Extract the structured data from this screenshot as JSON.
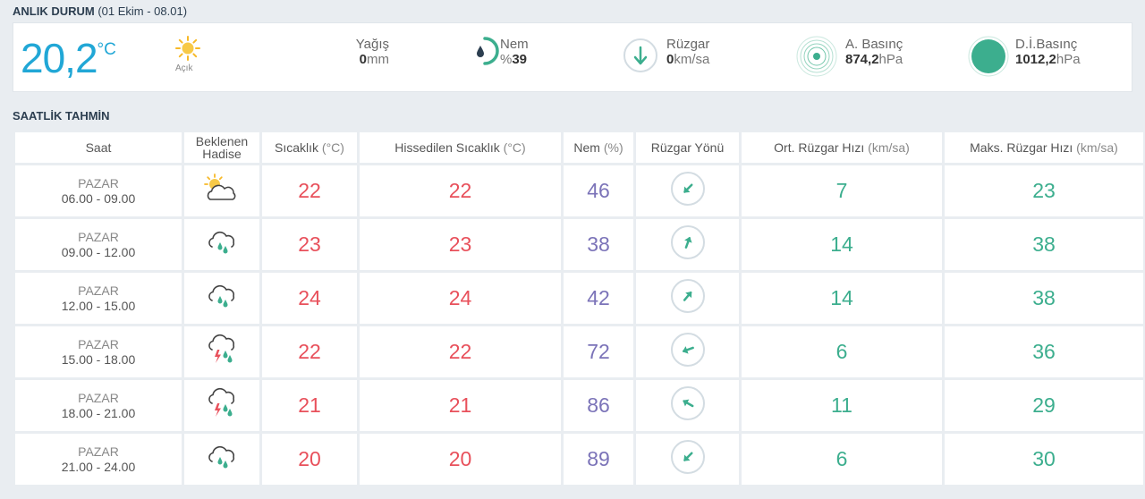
{
  "current": {
    "title": "ANLIK DURUM",
    "subtitle": "(01 Ekim - 08.01)",
    "temperature": "20,2",
    "temp_unit": "°C",
    "sky_label": "Açık",
    "rain_label": "Yağış",
    "rain_value": "0",
    "rain_unit": "mm",
    "humidity_label": "Nem",
    "humidity_prefix": "%",
    "humidity_value": "39",
    "wind_label": "Rüzgar",
    "wind_value": "0",
    "wind_unit": "km/sa",
    "pressure_label": "A. Basınç",
    "pressure_value": "874,2",
    "pressure_unit": "hPa",
    "sea_pressure_label": "D.İ.Basınç",
    "sea_pressure_value": "1012,2",
    "sea_pressure_unit": "hPa"
  },
  "forecast": {
    "title": "SAATLİK TAHMİN",
    "headers": {
      "time": "Saat",
      "event_1": "Beklenen",
      "event_2": "Hadise",
      "temp": "Sıcaklık",
      "temp_unit": "(°C)",
      "feels": "Hissedilen Sıcaklık",
      "feels_unit": "(°C)",
      "humidity": "Nem",
      "humidity_unit": "(%)",
      "wind_dir": "Rüzgar Yönü",
      "avg_wind": "Ort. Rüzgar Hızı",
      "avg_wind_unit": "(km/sa)",
      "max_wind": "Maks. Rüzgar Hızı",
      "max_wind_unit": "(km/sa)"
    },
    "rows": [
      {
        "day": "PAZAR",
        "range": "06.00 - 09.00",
        "icon": "partly-cloudy-icon",
        "temp": "22",
        "feels": "22",
        "humidity": "46",
        "wind_dir_deg": 225,
        "avg_wind": "7",
        "max_wind": "23"
      },
      {
        "day": "PAZAR",
        "range": "09.00 - 12.00",
        "icon": "rain-cloud-icon",
        "temp": "23",
        "feels": "23",
        "humidity": "38",
        "wind_dir_deg": 20,
        "avg_wind": "14",
        "max_wind": "38"
      },
      {
        "day": "PAZAR",
        "range": "12.00 - 15.00",
        "icon": "rain-cloud-icon",
        "temp": "24",
        "feels": "24",
        "humidity": "42",
        "wind_dir_deg": 40,
        "avg_wind": "14",
        "max_wind": "38"
      },
      {
        "day": "PAZAR",
        "range": "15.00 - 18.00",
        "icon": "thunderstorm-icon",
        "temp": "22",
        "feels": "22",
        "humidity": "72",
        "wind_dir_deg": 250,
        "avg_wind": "6",
        "max_wind": "36"
      },
      {
        "day": "PAZAR",
        "range": "18.00 - 21.00",
        "icon": "thunderstorm-icon",
        "temp": "21",
        "feels": "21",
        "humidity": "86",
        "wind_dir_deg": 300,
        "avg_wind": "11",
        "max_wind": "29"
      },
      {
        "day": "PAZAR",
        "range": "21.00 - 24.00",
        "icon": "rain-cloud-icon",
        "temp": "20",
        "feels": "20",
        "humidity": "89",
        "wind_dir_deg": 225,
        "avg_wind": "6",
        "max_wind": "30"
      }
    ]
  },
  "colors": {
    "accent": "#21a7d6",
    "temperature": "#e8505b",
    "humidity": "#7b73b8",
    "wind": "#3cae8e",
    "sun": "#f7b928"
  }
}
